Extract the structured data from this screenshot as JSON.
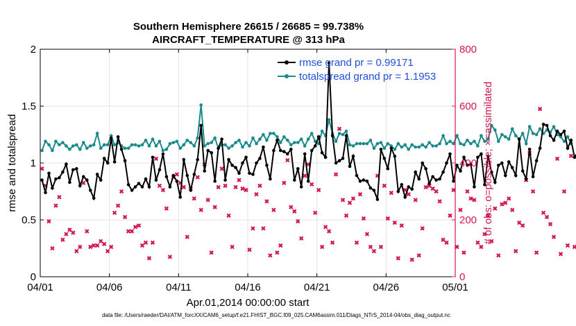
{
  "chart_data": {
    "type": "line",
    "title_line1": "Southern Hemisphere 26615 / 26685 = 99.738%",
    "title_line2": "AIRCRAFT_TEMPERATURE @ 313 hPa",
    "xlabel": "Apr.01,2014 00:00:00 start",
    "ylabel_left": "rmse and totalspread",
    "ylabel_right": "# of obs: o=possible; ×=assimilated",
    "footnote": "data file: /Users/raeder/DAI/ATM_forcXX/CAM6_setup/f.e21.FHIST_BGC.f09_025.CAM6assim.011/Diags_NTrS_2014-04/obs_diag_output.nc",
    "x_range_days": [
      0,
      30
    ],
    "x_ticks": [
      {
        "day": 0,
        "label": "04/01"
      },
      {
        "day": 5,
        "label": "04/06"
      },
      {
        "day": 10,
        "label": "04/11"
      },
      {
        "day": 15,
        "label": "04/16"
      },
      {
        "day": 20,
        "label": "04/21"
      },
      {
        "day": 25,
        "label": "04/26"
      },
      {
        "day": 30,
        "label": "05/01"
      }
    ],
    "ylim_left": [
      0,
      2
    ],
    "yticks_left": [
      {
        "value": 0,
        "label": "0"
      },
      {
        "value": 0.5,
        "label": "0.5"
      },
      {
        "value": 1,
        "label": "1"
      },
      {
        "value": 1.5,
        "label": "1.5"
      },
      {
        "value": 2,
        "label": "2"
      }
    ],
    "ylim_right": [
      0,
      800
    ],
    "yticks_right": [
      {
        "value": 0,
        "label": "0"
      },
      {
        "value": 200,
        "label": "200"
      },
      {
        "value": 400,
        "label": "400"
      },
      {
        "value": 600,
        "label": "600"
      },
      {
        "value": 800,
        "label": "800"
      }
    ],
    "legend": [
      {
        "name": "rmse grand pr = 0.99171",
        "color": "#000000"
      },
      {
        "name": "totalspread grand pr = 1.1953",
        "color": "#1a8a8a"
      }
    ],
    "colors": {
      "rmse": "#000000",
      "spread": "#1a8a8a",
      "obs": "#d1164f",
      "grid": "#e3e3e3"
    },
    "time_step_days": 0.25,
    "series": [
      {
        "name": "rmse",
        "values": [
          0.85,
          0.74,
          0.91,
          0.78,
          0.86,
          0.87,
          0.92,
          0.99,
          0.83,
          0.94,
          0.95,
          0.8,
          0.88,
          0.85,
          0.76,
          0.69,
          0.9,
          0.85,
          1.04,
          1.0,
          1.22,
          1.01,
          1.23,
          1.12,
          1.02,
          0.81,
          0.76,
          0.79,
          0.82,
          0.79,
          0.86,
          0.79,
          1.05,
          0.85,
          0.94,
          1.08,
          0.88,
          0.79,
          0.89,
          0.84,
          0.7,
          1.03,
          0.89,
          0.76,
          0.9,
          1.03,
          1.33,
          0.93,
          1.11,
          1.09,
          0.84,
          1.13,
          1.21,
          0.85,
          1.03,
          0.98,
          0.96,
          0.91,
          1.0,
          1.05,
          0.91,
          0.9,
          1.0,
          1.04,
          1.14,
          0.98,
          0.86,
          1.11,
          1.2,
          1.11,
          1.1,
          1.08,
          1.12,
          0.85,
          0.95,
          0.79,
          1.08,
          0.84,
          1.11,
          1.15,
          1.23,
          1.09,
          1.05,
          1.88,
          1.24,
          1.0,
          1.02,
          1.04,
          1.24,
          0.97,
          1.06,
          0.89,
          0.84,
          0.85,
          0.84,
          0.78,
          0.76,
          0.68,
          1.12,
          1.04,
          0.95,
          1.13,
          1.06,
          0.75,
          0.81,
          0.7,
          0.79,
          0.77,
          0.92,
          0.86,
          1.0,
          0.95,
          0.82,
          0.88,
          0.85,
          0.86,
          0.92,
          1.0,
          1.08,
          0.84,
          0.98,
          0.93,
          1.05,
          0.98,
          0.99,
          0.79,
          1.05,
          1.08,
          0.81,
          1.06,
          0.92,
          0.83,
          0.98,
          1.0,
          0.89,
          1.01,
          0.96,
          0.89,
          1.21,
          0.93,
          0.86,
          1.12,
          0.88,
          1.02,
          1.13,
          1.34,
          1.33,
          1.24,
          1.2,
          1.28,
          1.25,
          1.28,
          1.13,
          1.2,
          1.05,
          1.1
        ]
      },
      {
        "name": "totalspread",
        "values": [
          1.11,
          1.19,
          1.16,
          1.11,
          1.19,
          1.16,
          1.18,
          1.15,
          1.12,
          1.15,
          1.16,
          1.12,
          1.18,
          1.13,
          1.15,
          1.16,
          1.26,
          1.13,
          1.16,
          1.16,
          1.24,
          1.16,
          1.18,
          1.15,
          1.13,
          1.13,
          1.16,
          1.16,
          1.15,
          1.16,
          1.2,
          1.15,
          1.21,
          1.15,
          1.19,
          1.11,
          1.12,
          1.17,
          1.18,
          1.19,
          1.13,
          1.16,
          1.2,
          1.18,
          1.15,
          1.22,
          1.51,
          1.15,
          1.17,
          1.18,
          1.22,
          1.13,
          1.16,
          1.16,
          1.13,
          1.15,
          1.18,
          1.2,
          1.14,
          1.18,
          1.15,
          1.22,
          1.17,
          1.21,
          1.25,
          1.2,
          1.26,
          1.26,
          1.23,
          1.18,
          1.23,
          1.2,
          1.16,
          1.18,
          1.18,
          1.21,
          1.15,
          1.21,
          1.26,
          1.19,
          1.17,
          1.28,
          1.24,
          1.38,
          1.26,
          1.19,
          1.26,
          1.25,
          1.28,
          1.16,
          1.15,
          1.17,
          1.17,
          1.17,
          1.17,
          1.2,
          1.13,
          1.17,
          1.18,
          1.13,
          1.17,
          1.15,
          1.12,
          1.17,
          1.14,
          1.16,
          1.12,
          1.16,
          1.14,
          1.14,
          1.16,
          1.14,
          1.18,
          1.15,
          1.15,
          1.17,
          1.24,
          1.17,
          1.19,
          1.17,
          1.24,
          1.17,
          1.16,
          1.2,
          1.17,
          1.19,
          1.15,
          1.24,
          1.19,
          1.21,
          1.33,
          1.29,
          1.19,
          1.25,
          1.23,
          1.21,
          1.3,
          1.24,
          1.21,
          1.26,
          1.17,
          1.32,
          1.26,
          1.25,
          1.3,
          1.26,
          1.29,
          1.27,
          1.32,
          1.25,
          1.23,
          1.19,
          1.23,
          1.17
        ]
      }
    ],
    "obs_assimilated": [
      380,
      320,
      195,
      100,
      250,
      280,
      130,
      150,
      165,
      155,
      90,
      105,
      330,
      160,
      105,
      110,
      110,
      125,
      115,
      90,
      105,
      225,
      250,
      300,
      210,
      160,
      160,
      175,
      180,
      110,
      120,
      65,
      120,
      415,
      320,
      305,
      240,
      70,
      350,
      360,
      330,
      315,
      140,
      310,
      275,
      350,
      235,
      395,
      270,
      85,
      245,
      315,
      380,
      320,
      215,
      105,
      315,
      340,
      310,
      305,
      95,
      170,
      290,
      320,
      170,
      265,
      75,
      235,
      85,
      110,
      330,
      410,
      245,
      230,
      195,
      135,
      355,
      395,
      325,
      225,
      305,
      105,
      175,
      160,
      120,
      360,
      520,
      270,
      215,
      260,
      275,
      120,
      290,
      205,
      150,
      105,
      90,
      355,
      105,
      320,
      205,
      295,
      190,
      65,
      180,
      305,
      290,
      60,
      270,
      75,
      170,
      315,
      320,
      310,
      300,
      265,
      130,
      120,
      215,
      305,
      105,
      235,
      85,
      300,
      275,
      270,
      120,
      105,
      150,
      215,
      125,
      240,
      75,
      255,
      260,
      275,
      235,
      90,
      190,
      180,
      340,
      435,
      300,
      85,
      590,
      225,
      210,
      185,
      140,
      415,
      80,
      300,
      110,
      425,
      105,
      100,
      0
    ]
  }
}
